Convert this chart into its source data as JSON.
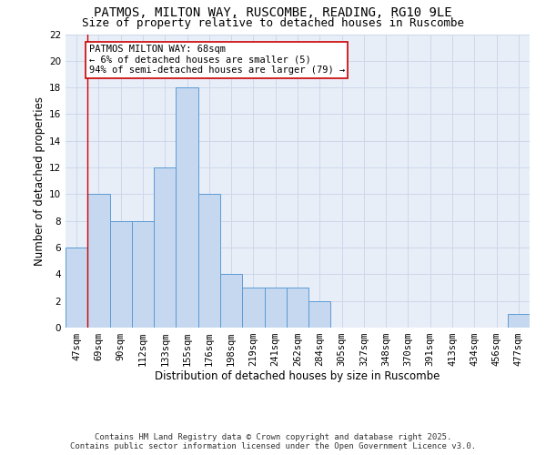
{
  "title_line1": "PATMOS, MILTON WAY, RUSCOMBE, READING, RG10 9LE",
  "title_line2": "Size of property relative to detached houses in Ruscombe",
  "xlabel": "Distribution of detached houses by size in Ruscombe",
  "ylabel": "Number of detached properties",
  "categories": [
    "47sqm",
    "69sqm",
    "90sqm",
    "112sqm",
    "133sqm",
    "155sqm",
    "176sqm",
    "198sqm",
    "219sqm",
    "241sqm",
    "262sqm",
    "284sqm",
    "305sqm",
    "327sqm",
    "348sqm",
    "370sqm",
    "391sqm",
    "413sqm",
    "434sqm",
    "456sqm",
    "477sqm"
  ],
  "values": [
    6,
    10,
    8,
    8,
    12,
    18,
    10,
    4,
    3,
    3,
    3,
    2,
    0,
    0,
    0,
    0,
    0,
    0,
    0,
    0,
    1
  ],
  "bar_color": "#c5d8f0",
  "bar_edge_color": "#5b9bd5",
  "grid_color": "#cdd8ea",
  "background_color": "#e8eef8",
  "annotation_box_color": "#cc0000",
  "annotation_line1": "PATMOS MILTON WAY: 68sqm",
  "annotation_line2": "← 6% of detached houses are smaller (5)",
  "annotation_line3": "94% of semi-detached houses are larger (79) →",
  "vline_x": 0.5,
  "ylim": [
    0,
    22
  ],
  "yticks": [
    0,
    2,
    4,
    6,
    8,
    10,
    12,
    14,
    16,
    18,
    20,
    22
  ],
  "footer_line1": "Contains HM Land Registry data © Crown copyright and database right 2025.",
  "footer_line2": "Contains public sector information licensed under the Open Government Licence v3.0.",
  "title_fontsize": 10,
  "subtitle_fontsize": 9,
  "axis_label_fontsize": 8.5,
  "tick_fontsize": 7.5,
  "annotation_fontsize": 7.5,
  "footer_fontsize": 6.5
}
